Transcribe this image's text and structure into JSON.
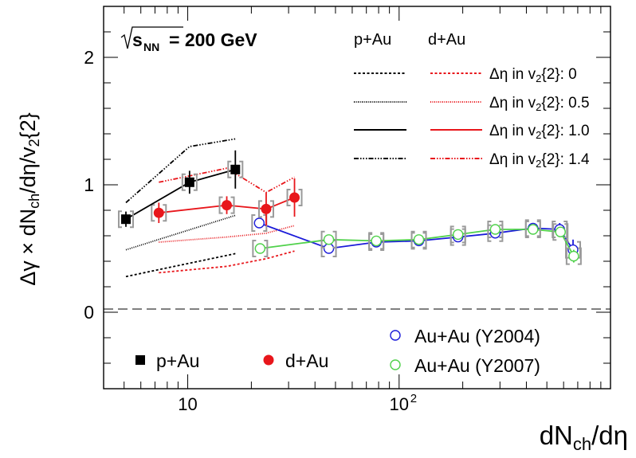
{
  "chart_data": {
    "type": "scatter",
    "energy_label": {
      "sqrt": "s",
      "sub": "NN",
      "rest": "= 200 GeV"
    },
    "ylabel": {
      "p1": "Δγ × dN",
      "sub1": "ch",
      "p2": "/dη/v",
      "sub2": "2",
      "p3": "{2}"
    },
    "xlabel": {
      "p1": "dN",
      "sub": "ch",
      "p2": "/dη"
    },
    "x_scale": "log",
    "xlim": [
      4,
      1000
    ],
    "ylim": [
      -0.6,
      2.4
    ],
    "x_ticks": [
      {
        "value": 10,
        "label": "10"
      },
      {
        "value": 100,
        "label": "10",
        "sup": "2"
      }
    ],
    "y_ticks": [
      {
        "value": 0,
        "label": "0"
      },
      {
        "value": 1,
        "label": "1"
      },
      {
        "value": 2,
        "label": "2"
      }
    ],
    "zero_line": {
      "y": 0,
      "style": "dashed"
    },
    "legend_lines": {
      "col1_header": "p+Au",
      "col2_header": "d+Au",
      "rows": [
        {
          "label_p1": "Δη in v",
          "label_sub": "2",
          "label_p2": "{2}: 0",
          "dash": "3,2.5"
        },
        {
          "label_p1": "Δη in v",
          "label_sub": "2",
          "label_p2": "{2}: 0.5",
          "dash": "1,1.5"
        },
        {
          "label_p1": "Δη in v",
          "label_sub": "2",
          "label_p2": "{2}: 1.0",
          "dash": ""
        },
        {
          "label_p1": "Δη in v",
          "label_sub": "2",
          "label_p2": "{2}: 1.4",
          "dash": "6,2,1.5,2,1.5,2,1.5,2"
        }
      ]
    },
    "colors": {
      "pAu": "#000000",
      "dAu": "#e8161b",
      "auau2004": "#1b1bd9",
      "auau2007": "#4fd14a",
      "syst": "#9a9a9a"
    },
    "series": [
      {
        "name": "p+Au",
        "marker": "square",
        "color": "#000000",
        "x": [
          5.1,
          10.2,
          16.8
        ],
        "y": [
          0.73,
          1.02,
          1.12
        ],
        "yerr": [
          0.06,
          0.09,
          0.15
        ]
      },
      {
        "name": "d+Au",
        "marker": "circle",
        "color": "#e8161b",
        "x": [
          7.3,
          15.3,
          23.5,
          32.0
        ],
        "y": [
          0.78,
          0.84,
          0.81,
          0.9
        ],
        "yerr": [
          0.08,
          0.07,
          0.13,
          0.15
        ]
      },
      {
        "name": "Au+Au (Y2004)",
        "marker": "open-circle",
        "color": "#1b1bd9",
        "x": [
          21.8,
          46.5,
          78.0,
          124.0,
          190.0,
          285.0,
          430.0,
          575.0,
          665.0
        ],
        "y": [
          0.7,
          0.5,
          0.55,
          0.56,
          0.59,
          0.62,
          0.66,
          0.65,
          0.49
        ],
        "yerr": [
          0.03,
          0.03,
          0.02,
          0.02,
          0.02,
          0.02,
          0.03,
          0.05,
          0.08
        ]
      },
      {
        "name": "Au+Au (Y2007)",
        "marker": "open-circle",
        "color": "#4fd14a",
        "x": [
          22.0,
          46.5,
          78.0,
          124.0,
          190.0,
          285.0,
          430.0,
          580.0,
          670.0
        ],
        "y": [
          0.5,
          0.57,
          0.56,
          0.57,
          0.61,
          0.65,
          0.65,
          0.63,
          0.44
        ],
        "yerr": [
          0.02,
          0.02,
          0.02,
          0.02,
          0.02,
          0.02,
          0.02,
          0.03,
          0.05
        ]
      }
    ],
    "band_lines": [
      {
        "system": "p+Au",
        "style": "dashed",
        "x": [
          5.1,
          16.8
        ],
        "y": [
          0.28,
          0.46
        ]
      },
      {
        "system": "p+Au",
        "style": "dotted",
        "x": [
          5.1,
          16.8
        ],
        "y": [
          0.49,
          0.76
        ]
      },
      {
        "system": "p+Au",
        "style": "dashdot",
        "x": [
          5.1,
          10.2,
          16.8
        ],
        "y": [
          0.86,
          1.3,
          1.36
        ]
      },
      {
        "system": "d+Au",
        "style": "dashed",
        "x": [
          7.3,
          15.3,
          23.5,
          32.0
        ],
        "y": [
          0.31,
          0.36,
          0.42,
          0.48
        ]
      },
      {
        "system": "d+Au",
        "style": "dotted",
        "x": [
          7.3,
          15.3,
          23.5,
          32.0
        ],
        "y": [
          0.55,
          0.59,
          0.62,
          0.68
        ]
      },
      {
        "system": "d+Au",
        "style": "dashdot",
        "x": [
          7.3,
          15.3,
          23.5,
          32.0
        ],
        "y": [
          1.02,
          1.13,
          0.94,
          1.06
        ]
      }
    ],
    "legend": [
      {
        "label": "p+Au",
        "marker": "square",
        "color": "#000000"
      },
      {
        "label": "d+Au",
        "marker": "circle",
        "color": "#e8161b"
      },
      {
        "label": "Au+Au (Y2004)",
        "marker": "open-circle",
        "color": "#1b1bd9"
      },
      {
        "label": "Au+Au (Y2007)",
        "marker": "open-circle",
        "color": "#4fd14a"
      }
    ]
  }
}
